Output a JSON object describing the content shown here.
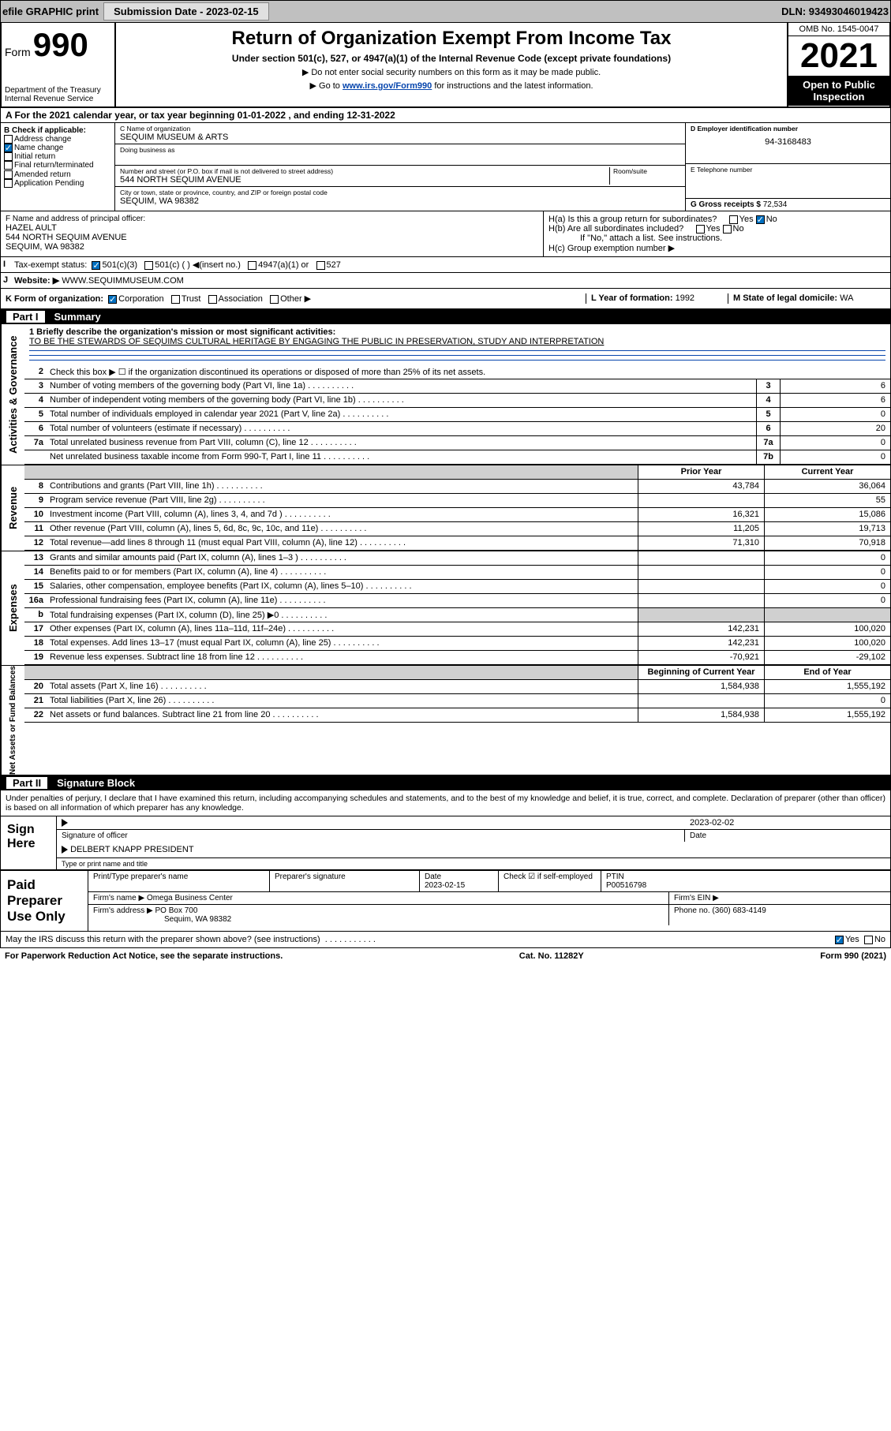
{
  "topbar": {
    "efile": "efile GRAPHIC print",
    "subdate_label": "Submission Date - 2023-02-15",
    "dln": "DLN: 93493046019423"
  },
  "header": {
    "form_prefix": "Form",
    "form_num": "990",
    "dept": "Department of the Treasury",
    "irs": "Internal Revenue Service",
    "title": "Return of Organization Exempt From Income Tax",
    "subtitle": "Under section 501(c), 527, or 4947(a)(1) of the Internal Revenue Code (except private foundations)",
    "note1": "▶ Do not enter social security numbers on this form as it may be made public.",
    "note2_pre": "▶ Go to ",
    "note2_link": "www.irs.gov/Form990",
    "note2_post": " for instructions and the latest information.",
    "omb": "OMB No. 1545-0047",
    "year": "2021",
    "open": "Open to Public Inspection"
  },
  "taxyear": "A For the 2021 calendar year, or tax year beginning 01-01-2022    , and ending 12-31-2022",
  "B": {
    "label": "B Check if applicable:",
    "items": [
      "Address change",
      "Name change",
      "Initial return",
      "Final return/terminated",
      "Amended return",
      "Application Pending"
    ],
    "checked_idx": 1
  },
  "C": {
    "name_label": "C Name of organization",
    "name": "SEQUIM MUSEUM & ARTS",
    "dba_label": "Doing business as",
    "addr_label": "Number and street (or P.O. box if mail is not delivered to street address)",
    "room_label": "Room/suite",
    "addr": "544 NORTH SEQUIM AVENUE",
    "city_label": "City or town, state or province, country, and ZIP or foreign postal code",
    "city": "SEQUIM, WA  98382"
  },
  "D": {
    "label": "D Employer identification number",
    "val": "94-3168483"
  },
  "E": {
    "label": "E Telephone number",
    "val": ""
  },
  "G": {
    "label": "G Gross receipts $",
    "val": "72,534"
  },
  "F": {
    "label": "F  Name and address of principal officer:",
    "name": "HAZEL AULT",
    "addr1": "544 NORTH SEQUIM AVENUE",
    "addr2": "SEQUIM, WA  98382"
  },
  "H": {
    "a": "H(a)  Is this a group return for subordinates?",
    "a_no": true,
    "b": "H(b)  Are all subordinates included?",
    "b_note": "If \"No,\" attach a list. See instructions.",
    "c": "H(c)  Group exemption number ▶"
  },
  "I": {
    "label": "Tax-exempt status:",
    "opts": [
      "501(c)(3)",
      "501(c) (  ) ◀(insert no.)",
      "4947(a)(1) or",
      "527"
    ],
    "checked_idx": 0
  },
  "J": {
    "label": "Website: ▶",
    "val": "WWW.SEQUIMMUSEUM.COM"
  },
  "K": {
    "label": "K Form of organization:",
    "opts": [
      "Corporation",
      "Trust",
      "Association",
      "Other ▶"
    ],
    "checked_idx": 0
  },
  "L": {
    "label": "L Year of formation:",
    "val": "1992"
  },
  "M": {
    "label": "M State of legal domicile:",
    "val": "WA"
  },
  "part1": {
    "num": "Part I",
    "title": "Summary"
  },
  "mission": {
    "q": "1  Briefly describe the organization's mission or most significant activities:",
    "text": "TO BE THE STEWARDS OF SEQUIMS CULTURAL HERITAGE BY ENGAGING THE PUBLIC IN PRESERVATION, STUDY AND INTERPRETATION"
  },
  "line2": "Check this box ▶ ☐  if the organization discontinued its operations or disposed of more than 25% of its net assets.",
  "sections": {
    "gov": "Activities & Governance",
    "rev": "Revenue",
    "exp": "Expenses",
    "net": "Net Assets or Fund Balances"
  },
  "govlines": [
    {
      "n": "3",
      "t": "Number of voting members of the governing body (Part VI, line 1a)",
      "nb": "3",
      "v": "6"
    },
    {
      "n": "4",
      "t": "Number of independent voting members of the governing body (Part VI, line 1b)",
      "nb": "4",
      "v": "6"
    },
    {
      "n": "5",
      "t": "Total number of individuals employed in calendar year 2021 (Part V, line 2a)",
      "nb": "5",
      "v": "0"
    },
    {
      "n": "6",
      "t": "Total number of volunteers (estimate if necessary)",
      "nb": "6",
      "v": "20"
    },
    {
      "n": "7a",
      "t": "Total unrelated business revenue from Part VIII, column (C), line 12",
      "nb": "7a",
      "v": "0"
    },
    {
      "n": "",
      "t": "Net unrelated business taxable income from Form 990-T, Part I, line 11",
      "nb": "7b",
      "v": "0"
    }
  ],
  "colhdr": {
    "p": "Prior Year",
    "c": "Current Year",
    "b": "Beginning of Current Year",
    "e": "End of Year"
  },
  "revlines": [
    {
      "n": "8",
      "t": "Contributions and grants (Part VIII, line 1h)",
      "p": "43,784",
      "c": "36,064"
    },
    {
      "n": "9",
      "t": "Program service revenue (Part VIII, line 2g)",
      "p": "",
      "c": "55"
    },
    {
      "n": "10",
      "t": "Investment income (Part VIII, column (A), lines 3, 4, and 7d )",
      "p": "16,321",
      "c": "15,086"
    },
    {
      "n": "11",
      "t": "Other revenue (Part VIII, column (A), lines 5, 6d, 8c, 9c, 10c, and 11e)",
      "p": "11,205",
      "c": "19,713"
    },
    {
      "n": "12",
      "t": "Total revenue—add lines 8 through 11 (must equal Part VIII, column (A), line 12)",
      "p": "71,310",
      "c": "70,918"
    }
  ],
  "explines": [
    {
      "n": "13",
      "t": "Grants and similar amounts paid (Part IX, column (A), lines 1–3 )",
      "p": "",
      "c": "0"
    },
    {
      "n": "14",
      "t": "Benefits paid to or for members (Part IX, column (A), line 4)",
      "p": "",
      "c": "0"
    },
    {
      "n": "15",
      "t": "Salaries, other compensation, employee benefits (Part IX, column (A), lines 5–10)",
      "p": "",
      "c": "0"
    },
    {
      "n": "16a",
      "t": "Professional fundraising fees (Part IX, column (A), line 11e)",
      "p": "",
      "c": "0"
    },
    {
      "n": "b",
      "t": "Total fundraising expenses (Part IX, column (D), line 25) ▶0",
      "p": "shade",
      "c": "shade"
    },
    {
      "n": "17",
      "t": "Other expenses (Part IX, column (A), lines 11a–11d, 11f–24e)",
      "p": "142,231",
      "c": "100,020"
    },
    {
      "n": "18",
      "t": "Total expenses. Add lines 13–17 (must equal Part IX, column (A), line 25)",
      "p": "142,231",
      "c": "100,020"
    },
    {
      "n": "19",
      "t": "Revenue less expenses. Subtract line 18 from line 12",
      "p": "-70,921",
      "c": "-29,102"
    }
  ],
  "netlines": [
    {
      "n": "20",
      "t": "Total assets (Part X, line 16)",
      "p": "1,584,938",
      "c": "1,555,192"
    },
    {
      "n": "21",
      "t": "Total liabilities (Part X, line 26)",
      "p": "",
      "c": "0"
    },
    {
      "n": "22",
      "t": "Net assets or fund balances. Subtract line 21 from line 20",
      "p": "1,584,938",
      "c": "1,555,192"
    }
  ],
  "part2": {
    "num": "Part II",
    "title": "Signature Block"
  },
  "sig": {
    "declare": "Under penalties of perjury, I declare that I have examined this return, including accompanying schedules and statements, and to the best of my knowledge and belief, it is true, correct, and complete. Declaration of preparer (other than officer) is based on all information of which preparer has any knowledge.",
    "signhere": "Sign Here",
    "sigoff": "Signature of officer",
    "date": "Date",
    "dateval": "2023-02-02",
    "officer": "DELBERT KNAPP  PRESIDENT",
    "typeprint": "Type or print name and title",
    "paid": "Paid Preparer Use Only",
    "prepname": "Print/Type preparer's name",
    "prepsig": "Preparer's signature",
    "prepdate": "Date",
    "prepdateval": "2023-02-15",
    "check": "Check ☑ if self-employed",
    "ptin": "PTIN",
    "ptinval": "P00516798",
    "firmname": "Firm's name     ▶ Omega Business Center",
    "firmein": "Firm's EIN ▶",
    "firmaddr": "Firm's address ▶ PO Box 700",
    "firmcity": "Sequim, WA  98382",
    "phone": "Phone no. (360) 683-4149",
    "discuss": "May the IRS discuss this return with the preparer shown above? (see instructions)",
    "yes": "Yes",
    "no": "No"
  },
  "footer": {
    "left": "For Paperwork Reduction Act Notice, see the separate instructions.",
    "mid": "Cat. No. 11282Y",
    "right": "Form 990 (2021)"
  },
  "colors": {
    "link": "#0645ad",
    "checkbox_checked": "#0070c0",
    "topbar_bg": "#c0c0c0",
    "shade": "#d0d0d0"
  }
}
